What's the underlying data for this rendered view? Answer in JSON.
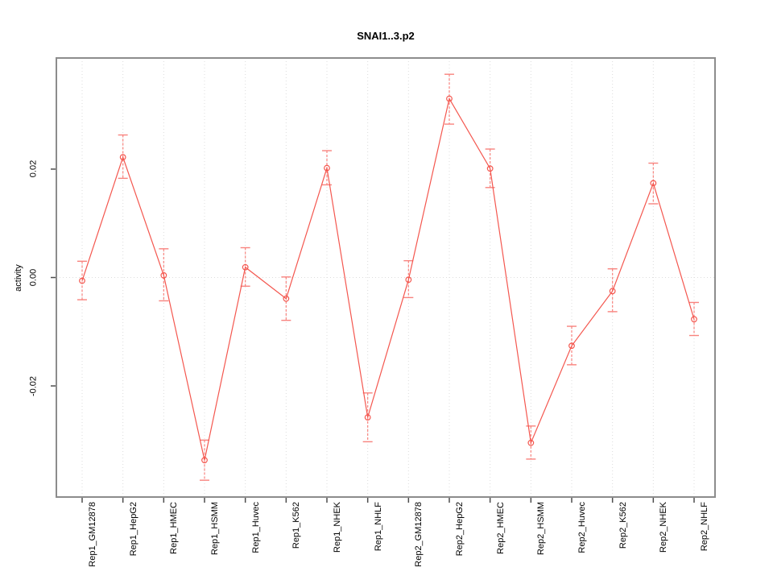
{
  "chart_data": {
    "type": "line",
    "title": "SNAI1..3.p2",
    "xlabel": "",
    "ylabel": "activity",
    "legend": "none",
    "grid": {
      "vertical": true,
      "horizontal_at": [
        0
      ]
    },
    "point_style": "open-circle",
    "categories": [
      "Rep1_GM12878",
      "Rep1_HepG2",
      "Rep1_HMEC",
      "Rep1_HSMM",
      "Rep1_Huvec",
      "Rep1_K562",
      "Rep1_NHEK",
      "Rep1_NHLF",
      "Rep2_GM12878",
      "Rep2_HepG2",
      "Rep2_HMEC",
      "Rep2_HSMM",
      "Rep2_Huvec",
      "Rep2_K562",
      "Rep2_NHEK",
      "Rep2_NHLF"
    ],
    "series": [
      {
        "name": "activity",
        "values": [
          -0.0006,
          0.0222,
          0.0004,
          -0.0337,
          0.0019,
          -0.0039,
          0.0202,
          -0.0258,
          -0.0004,
          0.033,
          0.0201,
          -0.0305,
          -0.0126,
          -0.0025,
          0.0174,
          -0.0077
        ],
        "err_high": [
          0.003,
          0.0263,
          0.0053,
          -0.03,
          0.0055,
          0.0001,
          0.0234,
          -0.0213,
          0.0031,
          0.0375,
          0.0237,
          -0.0274,
          -0.009,
          0.0016,
          0.0211,
          -0.0046
        ],
        "err_low": [
          -0.0041,
          0.0183,
          -0.0043,
          -0.0374,
          -0.0016,
          -0.0079,
          0.0171,
          -0.0303,
          -0.0037,
          0.0283,
          0.0166,
          -0.0335,
          -0.0161,
          -0.0063,
          0.0136,
          -0.0107
        ]
      }
    ],
    "yticks": [
      -0.02,
      0,
      0.02
    ],
    "ytick_labels": [
      "-0.02",
      "0.00",
      "0.02"
    ],
    "ylim": [
      -0.0405,
      0.0405
    ],
    "colors": {
      "line": "#F4574F",
      "errorbar": "#F8837E",
      "grid": "#DCDCDC",
      "box": "#8C8C8C",
      "tick": "#4D4D4D",
      "text": "#000000",
      "background": "#FFFFFF"
    }
  }
}
